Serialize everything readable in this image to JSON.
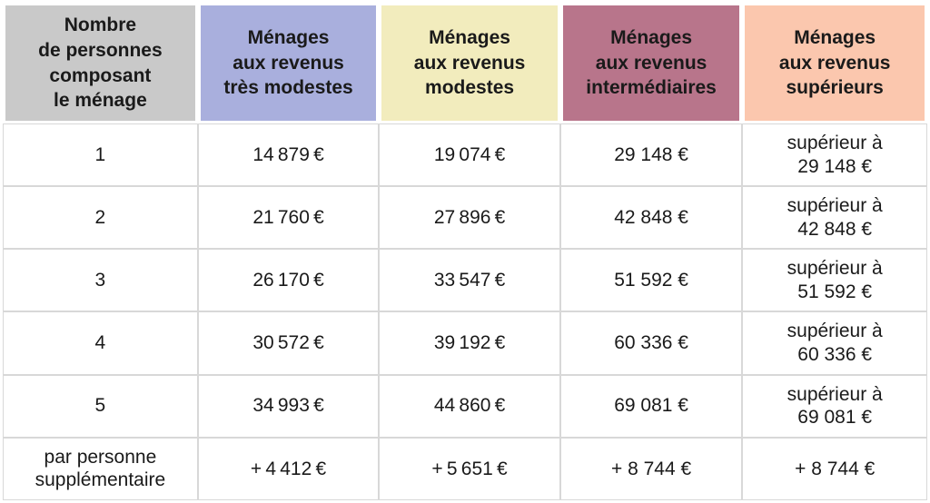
{
  "table": {
    "columns": [
      {
        "label": "Nombre\nde personnes\ncomposant\nle ménage",
        "bg": "#c9c9c9"
      },
      {
        "label": "Ménages\naux revenus\ntrès modestes",
        "bg": "#a9afdd"
      },
      {
        "label": "Ménages\naux revenus\nmodestes",
        "bg": "#f2ecbd"
      },
      {
        "label": "Ménages\naux revenus\nintermédiaires",
        "bg": "#b8758b"
      },
      {
        "label": "Ménages\naux revenus\nsupérieurs",
        "bg": "#fbc7ae"
      }
    ],
    "rows": [
      [
        "1",
        "14 879 €",
        "19 074 €",
        "29 148 €",
        "supérieur à\n29 148 €"
      ],
      [
        "2",
        "21 760 €",
        "27 896 €",
        "42 848 €",
        "supérieur à\n42 848 €"
      ],
      [
        "3",
        "26 170 €",
        "33 547 €",
        "51 592 €",
        "supérieur à\n51 592 €"
      ],
      [
        "4",
        "30 572 €",
        "39 192 €",
        "60 336 €",
        "supérieur à\n60 336 €"
      ],
      [
        "5",
        "34 993 €",
        "44 860 €",
        "69 081 €",
        "supérieur à\n69 081 €"
      ],
      [
        "par personne\nsupplémentaire",
        "+ 4 412 €",
        "+ 5 651 €",
        "+ 8 744 €",
        "+ 8 744 €"
      ]
    ],
    "colors": {
      "body_cell_background": "#ffffff",
      "body_border": "#d8d8d8",
      "header_separator": "#ffffff",
      "text": "#1a1a1a"
    }
  }
}
